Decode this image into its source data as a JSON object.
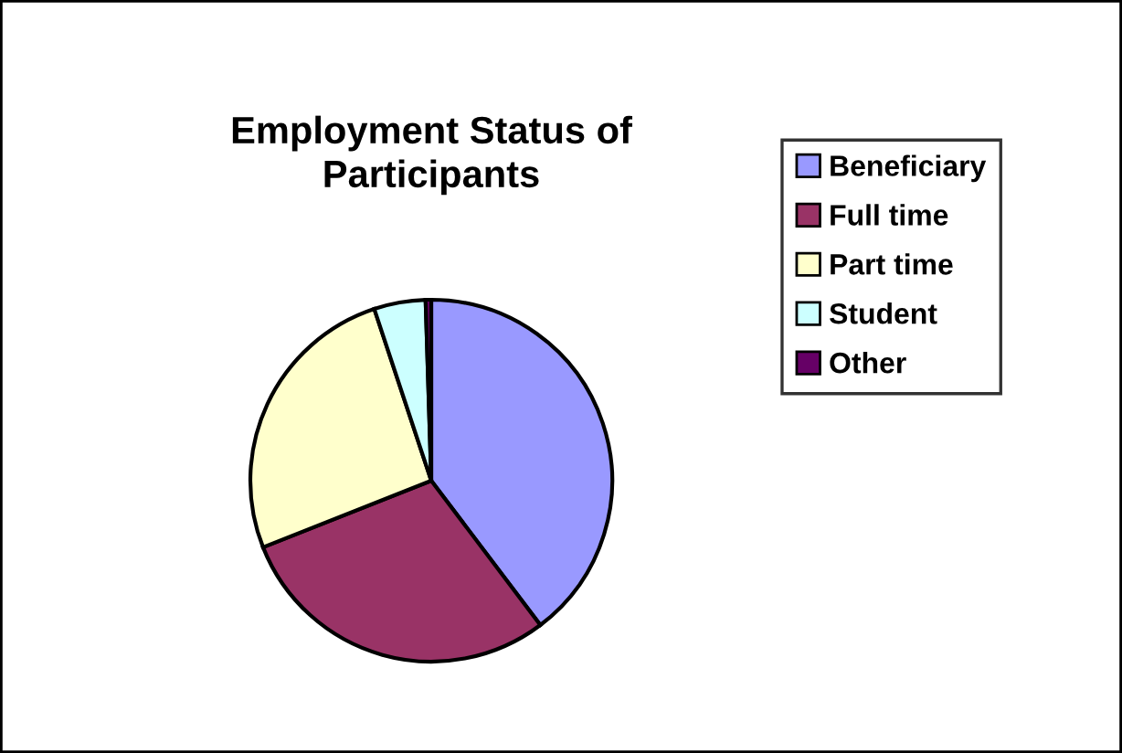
{
  "chart_data": {
    "type": "pie",
    "title": "Employment Status of\nParticipants",
    "categories": [
      "Beneficiary",
      "Full time",
      "Part time",
      "Student",
      "Other"
    ],
    "values": [
      39.7,
      29.3,
      25.9,
      4.6,
      0.5
    ],
    "colors": [
      "#9999ff",
      "#993366",
      "#ffffcc",
      "#ccffff",
      "#660066"
    ],
    "legend": "right"
  }
}
